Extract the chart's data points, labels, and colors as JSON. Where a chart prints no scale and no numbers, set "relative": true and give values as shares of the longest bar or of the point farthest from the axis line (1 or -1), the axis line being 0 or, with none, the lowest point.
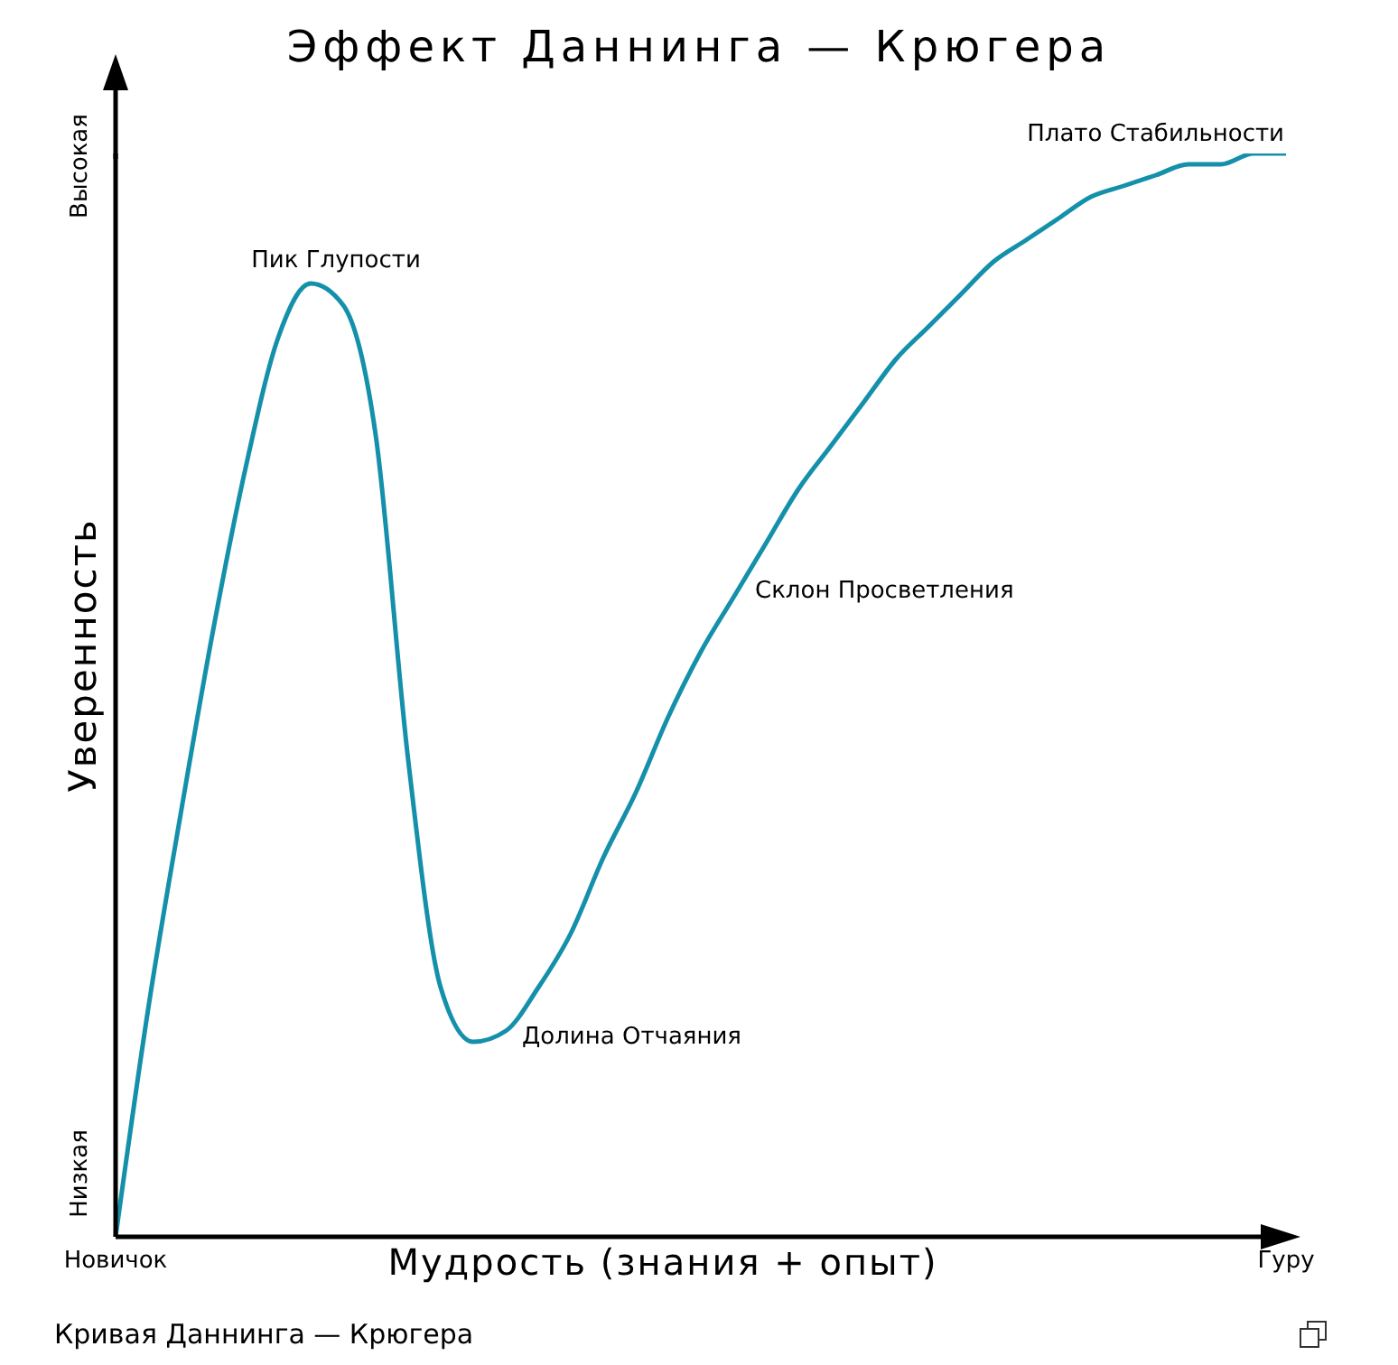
{
  "chart_data": {
    "type": "line",
    "title": "Эффект Даннинга — Крюгера",
    "xlabel": "Мудрость (знания + опыт)",
    "ylabel": "Уверенность",
    "relative": true,
    "grid": false,
    "legend": false,
    "marker": "none",
    "line_style": "solid",
    "categories": [
      "Новичок",
      null,
      null,
      null,
      null,
      null,
      null,
      null,
      null,
      null,
      null,
      null,
      null,
      null,
      null,
      null,
      null,
      null,
      null,
      null,
      null,
      null,
      null,
      null,
      null,
      null,
      null,
      null,
      null,
      null,
      null,
      null,
      null,
      null,
      null,
      null,
      "Гуру"
    ],
    "series": [
      {
        "color": "#1590aa",
        "values": [
          0,
          0.21,
          0.39,
          0.56,
          0.71,
          0.83,
          0.88,
          0.86,
          0.74,
          0.44,
          0.23,
          0.18,
          0.19,
          0.23,
          0.28,
          0.35,
          0.41,
          0.48,
          0.54,
          0.59,
          0.64,
          0.69,
          0.73,
          0.77,
          0.81,
          0.84,
          0.87,
          0.9,
          0.92,
          0.94,
          0.96,
          0.97,
          0.98,
          0.99,
          0.99,
          1,
          1
        ]
      }
    ],
    "annotations": [
      "Пик Глупости",
      "Долина Отчаяния",
      "Склон Просветления",
      "Плато Стабильности",
      "Низкая",
      "Высокая",
      "Кривая Даннинга — Крюгера"
    ]
  }
}
